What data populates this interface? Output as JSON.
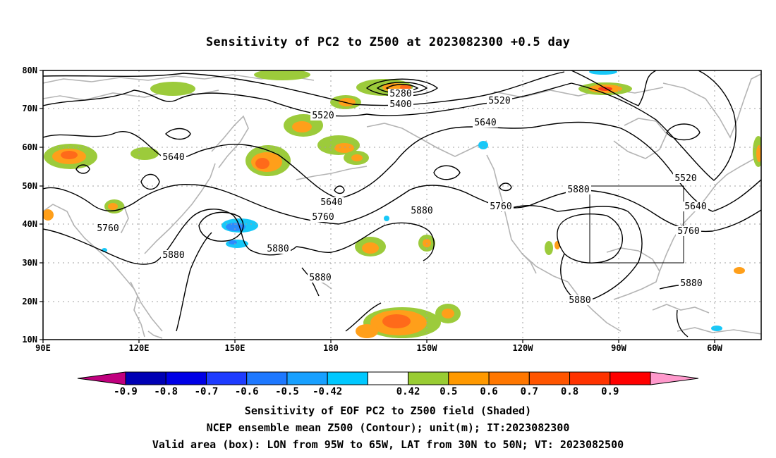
{
  "title": "Sensitivity of PC2 to Z500 at 2023082300 +0.5 day",
  "map": {
    "lat_labels": [
      "80N",
      "70N",
      "60N",
      "50N",
      "40N",
      "30N",
      "20N",
      "10N"
    ],
    "lon_labels": [
      "90E",
      "120E",
      "150E",
      "180",
      "150W",
      "120W",
      "90W",
      "60W"
    ],
    "valid_box": {
      "lon_west": "95W",
      "lon_east": "65W",
      "lat_south": "30N",
      "lat_north": "50N"
    },
    "contour_labels": [
      "5280",
      "5400",
      "5520",
      "5520",
      "5520",
      "5640",
      "5640",
      "5640",
      "5640",
      "5760",
      "5760",
      "5760",
      "5760",
      "5880",
      "5880",
      "5880",
      "5880",
      "5880",
      "5880",
      "5880"
    ],
    "colors": {
      "coast": "#b4b4b4",
      "contour": "#000000",
      "pos_042_05": "#9ccb3b",
      "pos_05_06": "#ff9f1a",
      "pos_06_07": "#ff6a1a",
      "pos_07_08": "#ff3b1a",
      "neg_05_042": "#18c8f8",
      "neg_06_05": "#2a8cff"
    }
  },
  "colorbar": {
    "labels": [
      "-0.9",
      "-0.8",
      "-0.7",
      "-0.6",
      "-0.5",
      "-0.42",
      "0.42",
      "0.5",
      "0.6",
      "0.7",
      "0.8",
      "0.9"
    ],
    "colors": [
      "#c0007e",
      "#0000b4",
      "#0000e6",
      "#1e3cff",
      "#1e78ff",
      "#18a0ff",
      "#00c8ff",
      "#ffffff",
      "#99cc33",
      "#ff9900",
      "#ff7700",
      "#ff5500",
      "#ff3300",
      "#ff0000",
      "#ff99cc"
    ]
  },
  "captions": {
    "line1": "Sensitivity of EOF PC2 to Z500 field (Shaded)",
    "line2": "NCEP ensemble mean Z500 (Contour); unit(m); IT:2023082300",
    "line3": "Valid area (box): LON from 95W to 65W, LAT from 30N to 50N; VT: 2023082500"
  }
}
